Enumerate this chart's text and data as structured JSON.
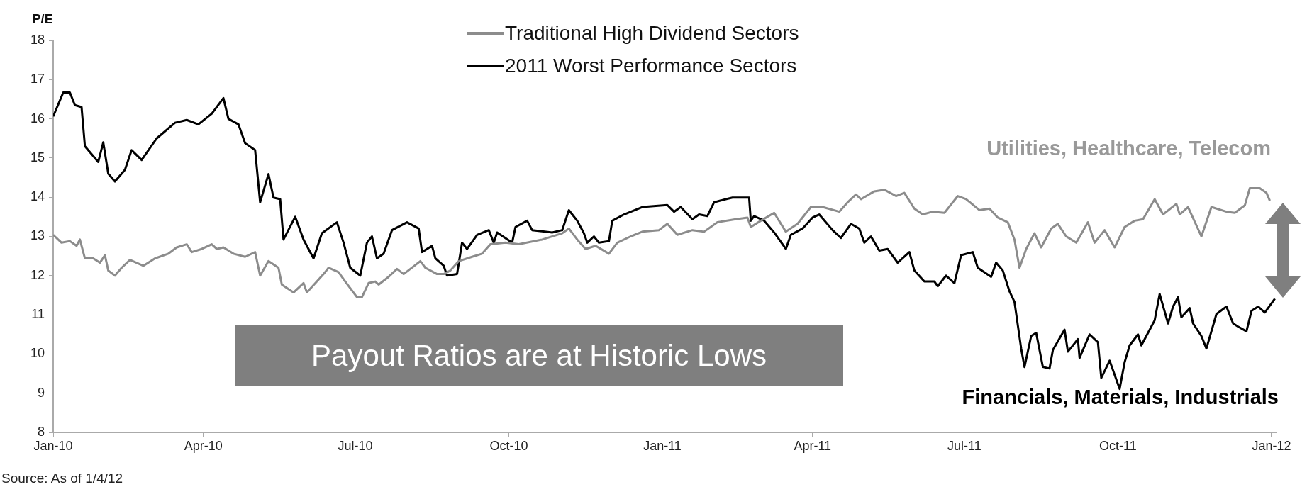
{
  "chart_data": {
    "type": "line",
    "ylabel": "P/E",
    "legend": "top",
    "line_style": "solid",
    "marker": "none",
    "xlim": [
      "2010-01-01",
      "2012-01-04"
    ],
    "xticks": [
      {
        "value": "2010-01-01",
        "label": "Jan-10"
      },
      {
        "value": "2010-04-01",
        "label": "Apr-10"
      },
      {
        "value": "2010-07-01",
        "label": "Jul-10"
      },
      {
        "value": "2010-10-01",
        "label": "Oct-10"
      },
      {
        "value": "2011-01-01",
        "label": "Jan-11"
      },
      {
        "value": "2011-04-01",
        "label": "Apr-11"
      },
      {
        "value": "2011-07-01",
        "label": "Jul-11"
      },
      {
        "value": "2011-10-01",
        "label": "Oct-11"
      },
      {
        "value": "2012-01-01",
        "label": "Jan-12"
      }
    ],
    "ylim": [
      8,
      18
    ],
    "yticks": [
      8,
      9,
      10,
      11,
      12,
      13,
      14,
      15,
      16,
      17,
      18
    ],
    "series": [
      {
        "name": "Traditional High Dividend Sectors",
        "color": "#8c8c8c",
        "x": [
          "2010-01-01",
          "2010-01-06",
          "2010-01-11",
          "2010-01-15",
          "2010-01-17",
          "2010-01-20",
          "2010-01-25",
          "2010-01-29",
          "2010-02-01",
          "2010-02-03",
          "2010-02-07",
          "2010-02-11",
          "2010-02-16",
          "2010-02-24",
          "2010-03-03",
          "2010-03-11",
          "2010-03-16",
          "2010-03-22",
          "2010-03-25",
          "2010-03-31",
          "2010-04-06",
          "2010-04-09",
          "2010-04-13",
          "2010-04-19",
          "2010-04-26",
          "2010-05-02",
          "2010-05-05",
          "2010-05-10",
          "2010-05-16",
          "2010-05-18",
          "2010-05-25",
          "2010-05-31",
          "2010-06-02",
          "2010-06-08",
          "2010-06-12",
          "2010-06-15",
          "2010-06-21",
          "2010-06-25",
          "2010-07-02",
          "2010-07-05",
          "2010-07-09",
          "2010-07-13",
          "2010-07-15",
          "2010-07-21",
          "2010-07-26",
          "2010-07-30",
          "2010-08-09",
          "2010-08-12",
          "2010-08-19",
          "2010-08-23",
          "2010-08-27",
          "2010-09-01",
          "2010-09-09",
          "2010-09-15",
          "2010-09-20",
          "2010-09-29",
          "2010-10-07",
          "2010-10-21",
          "2010-11-02",
          "2010-11-06",
          "2010-11-11",
          "2010-11-16",
          "2010-11-22",
          "2010-11-30",
          "2010-12-05",
          "2010-12-13",
          "2010-12-20",
          "2010-12-30",
          "2011-01-04",
          "2011-01-10",
          "2011-01-19",
          "2011-01-26",
          "2011-02-03",
          "2011-02-14",
          "2011-02-21",
          "2011-02-23",
          "2011-03-01",
          "2011-03-09",
          "2011-03-16",
          "2011-03-23",
          "2011-03-31",
          "2011-04-07",
          "2011-04-17",
          "2011-04-22",
          "2011-04-27",
          "2011-04-30",
          "2011-05-08",
          "2011-05-14",
          "2011-05-21",
          "2011-05-26",
          "2011-06-01",
          "2011-06-06",
          "2011-06-12",
          "2011-06-19",
          "2011-06-27",
          "2011-07-02",
          "2011-07-10",
          "2011-07-16",
          "2011-07-21",
          "2011-07-27",
          "2011-07-31",
          "2011-08-03",
          "2011-08-07",
          "2011-08-12",
          "2011-08-16",
          "2011-08-22",
          "2011-08-26",
          "2011-08-31",
          "2011-09-06",
          "2011-09-13",
          "2011-09-17",
          "2011-09-23",
          "2011-09-29",
          "2011-10-05",
          "2011-10-11",
          "2011-10-16",
          "2011-10-23",
          "2011-10-28",
          "2011-11-05",
          "2011-11-07",
          "2011-11-12",
          "2011-11-20",
          "2011-11-26",
          "2011-12-05",
          "2011-12-10",
          "2011-12-16",
          "2011-12-19",
          "2011-12-25",
          "2011-12-29",
          "2011-12-31"
        ],
        "values": [
          13.04,
          12.84,
          12.88,
          12.76,
          12.92,
          12.44,
          12.44,
          12.33,
          12.52,
          12.13,
          12.0,
          12.2,
          12.4,
          12.25,
          12.44,
          12.56,
          12.72,
          12.8,
          12.6,
          12.68,
          12.8,
          12.68,
          12.72,
          12.56,
          12.48,
          12.6,
          12.0,
          12.37,
          12.2,
          11.77,
          11.57,
          11.81,
          11.57,
          11.85,
          12.04,
          12.2,
          12.09,
          11.85,
          11.45,
          11.45,
          11.81,
          11.85,
          11.77,
          11.97,
          12.17,
          12.04,
          12.37,
          12.2,
          12.04,
          12.04,
          12.13,
          12.37,
          12.48,
          12.56,
          12.8,
          12.84,
          12.8,
          12.92,
          13.08,
          13.2,
          12.92,
          12.68,
          12.76,
          12.56,
          12.84,
          13.0,
          13.12,
          13.16,
          13.32,
          13.04,
          13.16,
          13.12,
          13.36,
          13.44,
          13.48,
          13.24,
          13.4,
          13.6,
          13.12,
          13.32,
          13.75,
          13.75,
          13.63,
          13.87,
          14.07,
          13.95,
          14.15,
          14.19,
          14.03,
          14.11,
          13.71,
          13.56,
          13.63,
          13.6,
          14.03,
          13.95,
          13.67,
          13.71,
          13.48,
          13.36,
          12.92,
          12.2,
          12.68,
          13.08,
          12.72,
          13.2,
          13.32,
          13.0,
          12.84,
          13.36,
          12.84,
          13.16,
          12.72,
          13.24,
          13.4,
          13.44,
          13.95,
          13.56,
          13.83,
          13.56,
          13.75,
          13.0,
          13.75,
          13.63,
          13.6,
          13.79,
          14.23,
          14.23,
          14.11,
          13.91
        ]
      },
      {
        "name": "2011 Worst Performance Sectors",
        "color": "#000000",
        "x": [
          "2010-01-01",
          "2010-01-07",
          "2010-01-11",
          "2010-01-14",
          "2010-01-18",
          "2010-01-20",
          "2010-01-28",
          "2010-01-31",
          "2010-02-03",
          "2010-02-07",
          "2010-02-13",
          "2010-02-17",
          "2010-02-23",
          "2010-03-04",
          "2010-03-15",
          "2010-03-22",
          "2010-03-29",
          "2010-04-06",
          "2010-04-13",
          "2010-04-16",
          "2010-04-22",
          "2010-04-26",
          "2010-05-02",
          "2010-05-05",
          "2010-05-10",
          "2010-05-13",
          "2010-05-17",
          "2010-05-19",
          "2010-05-26",
          "2010-05-31",
          "2010-06-06",
          "2010-06-11",
          "2010-06-20",
          "2010-06-24",
          "2010-06-28",
          "2010-07-04",
          "2010-07-08",
          "2010-07-11",
          "2010-07-14",
          "2010-07-18",
          "2010-07-23",
          "2010-08-01",
          "2010-08-08",
          "2010-08-10",
          "2010-08-16",
          "2010-08-18",
          "2010-08-23",
          "2010-08-25",
          "2010-08-31",
          "2010-09-03",
          "2010-09-06",
          "2010-09-12",
          "2010-09-19",
          "2010-09-22",
          "2010-09-24",
          "2010-10-03",
          "2010-10-05",
          "2010-10-12",
          "2010-10-15",
          "2010-10-27",
          "2010-11-02",
          "2010-11-06",
          "2010-11-11",
          "2010-11-15",
          "2010-11-17",
          "2010-11-21",
          "2010-11-24",
          "2010-11-30",
          "2010-12-02",
          "2010-12-09",
          "2010-12-20",
          "2011-01-04",
          "2011-01-08",
          "2011-01-12",
          "2011-01-19",
          "2011-01-23",
          "2011-01-28",
          "2011-02-01",
          "2011-02-08",
          "2011-02-12",
          "2011-02-22",
          "2011-02-23",
          "2011-02-25",
          "2011-03-03",
          "2011-03-09",
          "2011-03-16",
          "2011-03-19",
          "2011-03-26",
          "2011-04-01",
          "2011-04-05",
          "2011-04-13",
          "2011-04-18",
          "2011-04-24",
          "2011-04-29",
          "2011-05-02",
          "2011-05-06",
          "2011-05-11",
          "2011-05-16",
          "2011-05-22",
          "2011-05-29",
          "2011-06-01",
          "2011-06-07",
          "2011-06-13",
          "2011-06-15",
          "2011-06-20",
          "2011-06-25",
          "2011-06-29",
          "2011-07-06",
          "2011-07-09",
          "2011-07-17",
          "2011-07-20",
          "2011-07-24",
          "2011-07-28",
          "2011-07-31",
          "2011-08-04",
          "2011-08-06",
          "2011-08-10",
          "2011-08-13",
          "2011-08-17",
          "2011-08-21",
          "2011-08-23",
          "2011-08-30",
          "2011-09-01",
          "2011-09-07",
          "2011-09-08",
          "2011-09-14",
          "2011-09-19",
          "2011-09-21",
          "2011-09-26",
          "2011-10-02",
          "2011-10-05",
          "2011-10-08",
          "2011-10-13",
          "2011-10-15",
          "2011-10-21",
          "2011-10-23",
          "2011-10-26",
          "2011-10-31",
          "2011-11-03",
          "2011-11-06",
          "2011-11-08",
          "2011-11-13",
          "2011-11-15",
          "2011-11-20",
          "2011-11-23",
          "2011-11-29",
          "2011-12-05",
          "2011-12-09",
          "2011-12-12",
          "2011-12-17",
          "2011-12-20",
          "2011-12-24",
          "2011-12-28",
          "2012-01-03"
        ],
        "values": [
          16.06,
          16.67,
          16.67,
          16.35,
          16.3,
          15.3,
          14.9,
          15.4,
          14.6,
          14.4,
          14.7,
          15.2,
          14.95,
          15.5,
          15.9,
          15.97,
          15.86,
          16.13,
          16.53,
          16.0,
          15.86,
          15.38,
          15.2,
          13.87,
          14.59,
          13.99,
          13.95,
          12.92,
          13.5,
          12.92,
          12.44,
          13.08,
          13.36,
          12.84,
          12.2,
          12.0,
          12.84,
          13.0,
          12.44,
          12.56,
          13.16,
          13.36,
          13.2,
          12.6,
          12.76,
          12.44,
          12.25,
          12.0,
          12.04,
          12.84,
          12.68,
          13.04,
          13.16,
          12.84,
          13.1,
          12.84,
          13.24,
          13.4,
          13.16,
          13.1,
          13.16,
          13.67,
          13.4,
          13.08,
          12.84,
          13.0,
          12.84,
          12.88,
          13.4,
          13.56,
          13.75,
          13.8,
          13.63,
          13.75,
          13.44,
          13.56,
          13.52,
          13.87,
          13.95,
          13.99,
          13.99,
          13.4,
          13.52,
          13.4,
          13.1,
          12.68,
          13.04,
          13.2,
          13.48,
          13.56,
          13.16,
          12.96,
          13.32,
          13.2,
          12.84,
          13.0,
          12.64,
          12.68,
          12.33,
          12.6,
          12.13,
          11.85,
          11.85,
          11.73,
          12.0,
          11.81,
          12.52,
          12.6,
          12.2,
          11.97,
          12.33,
          12.13,
          11.6,
          11.33,
          10.14,
          9.67,
          10.46,
          10.54,
          9.67,
          9.63,
          10.1,
          10.62,
          10.06,
          10.38,
          9.9,
          10.5,
          10.3,
          9.39,
          9.83,
          9.11,
          9.79,
          10.22,
          10.5,
          10.22,
          10.7,
          10.86,
          11.53,
          10.78,
          11.21,
          11.45,
          10.94,
          11.17,
          10.78,
          10.46,
          10.14,
          11.02,
          11.21,
          10.78,
          10.7,
          10.58,
          11.1,
          11.21,
          11.06,
          11.41
        ]
      }
    ],
    "annotations": [
      "Payout Ratios are at Historic Lows",
      "Utilities, Healthcare, Telecom",
      "Financials, Materials, Industrials",
      "Source: As of 1/4/12"
    ]
  }
}
